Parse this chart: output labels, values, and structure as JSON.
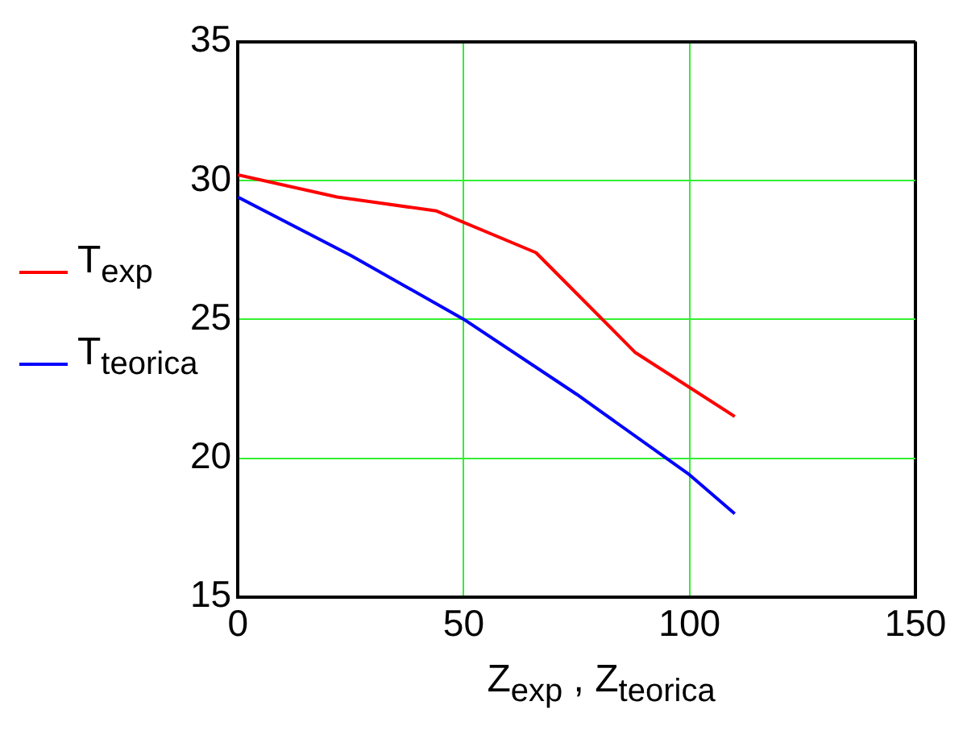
{
  "chart_data": {
    "type": "line",
    "xlabel": "Z$_{exp}$ , Z$_{teorica}$",
    "xlim": [
      0,
      150
    ],
    "xticks": [
      0,
      50,
      100,
      150
    ],
    "ylim": [
      15,
      35
    ],
    "yticks": [
      15,
      20,
      25,
      30,
      35
    ],
    "grid": true,
    "legend": "left",
    "marker": "none",
    "line_style": "solid",
    "series": [
      {
        "name": "T$_{exp}$",
        "color": "#ff0000",
        "x": [
          0,
          22,
          44,
          66,
          88,
          110
        ],
        "values": [
          30.2,
          29.4,
          28.9,
          27.4,
          23.8,
          21.5
        ]
      },
      {
        "name": "T$_{teorica}$",
        "color": "#0000ff",
        "x": [
          0,
          25,
          50,
          75,
          100,
          110
        ],
        "values": [
          29.4,
          27.3,
          25.0,
          22.3,
          19.4,
          18.0
        ]
      }
    ]
  }
}
